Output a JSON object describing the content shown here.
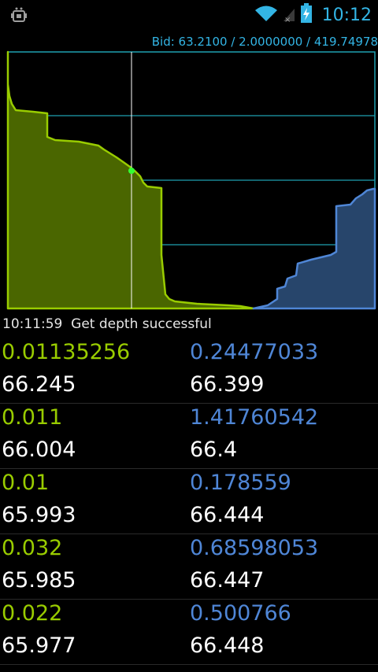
{
  "status_bar": {
    "time": "10:12",
    "icons": [
      "android-debug-icon",
      "wifi-icon",
      "no-signal-icon",
      "battery-charging-icon"
    ]
  },
  "bid_info": "Bid: 63.2100 / 2.0000000 / 419.74978",
  "depth_status": "10:11:59  Get depth successful",
  "colors": {
    "bid": "#99cc00",
    "bid_fill": "#4a6600",
    "ask": "#4f86d6",
    "ask_fill": "#27456b",
    "grid": "#1f9fb0",
    "accent": "#33b5e5"
  },
  "orders": [
    {
      "bid_amount": "0.01135256",
      "bid_price": "66.245",
      "ask_amount": "0.24477033",
      "ask_price": "66.399"
    },
    {
      "bid_amount": "0.011",
      "bid_price": "66.004",
      "ask_amount": "1.41760542",
      "ask_price": "66.4"
    },
    {
      "bid_amount": "0.01",
      "bid_price": "65.993",
      "ask_amount": "0.178559",
      "ask_price": "66.444"
    },
    {
      "bid_amount": "0.032",
      "bid_price": "65.985",
      "ask_amount": "0.68598053",
      "ask_price": "66.447"
    },
    {
      "bid_amount": "0.022",
      "bid_price": "65.977",
      "ask_amount": "0.500766",
      "ask_price": "66.448"
    }
  ]
}
